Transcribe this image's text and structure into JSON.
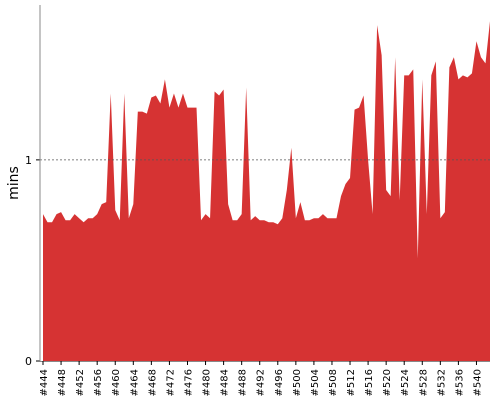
{
  "chart_data": {
    "type": "area",
    "y_label": "mins",
    "categories": [
      "#444",
      null,
      null,
      null,
      "#448",
      null,
      null,
      null,
      "#452",
      null,
      null,
      null,
      "#456",
      null,
      null,
      null,
      "#460",
      null,
      null,
      null,
      "#464",
      null,
      null,
      null,
      "#468",
      null,
      null,
      null,
      "#472",
      null,
      null,
      null,
      "#476",
      null,
      null,
      null,
      "#480",
      null,
      null,
      null,
      "#484",
      null,
      null,
      null,
      "#488",
      null,
      null,
      null,
      "#492",
      null,
      null,
      null,
      "#496",
      null,
      null,
      null,
      "#500",
      null,
      null,
      null,
      "#504",
      null,
      null,
      null,
      "#508",
      null,
      null,
      null,
      "#512",
      null,
      null,
      null,
      "#516",
      null,
      null,
      null,
      "#520",
      null,
      null,
      null,
      "#524",
      null,
      null,
      null,
      "#528",
      null,
      null,
      null,
      "#532",
      null,
      null,
      null,
      "#536",
      null,
      null,
      null,
      "#540",
      null,
      null,
      null
    ],
    "values": [
      0.73,
      0.69,
      0.69,
      0.73,
      0.74,
      0.7,
      0.7,
      0.73,
      0.71,
      0.69,
      0.71,
      0.71,
      0.73,
      0.78,
      0.79,
      1.33,
      0.75,
      0.7,
      1.33,
      0.71,
      0.78,
      1.24,
      1.24,
      1.23,
      1.31,
      1.32,
      1.28,
      1.4,
      1.26,
      1.33,
      1.26,
      1.33,
      1.26,
      1.26,
      1.26,
      0.7,
      0.73,
      0.71,
      1.34,
      1.32,
      1.35,
      0.78,
      0.7,
      0.7,
      0.73,
      1.36,
      0.7,
      0.72,
      0.7,
      0.7,
      0.69,
      0.69,
      0.68,
      0.71,
      0.85,
      1.06,
      0.71,
      0.79,
      0.7,
      0.7,
      0.71,
      0.71,
      0.73,
      0.71,
      0.71,
      0.71,
      0.82,
      0.88,
      0.91,
      1.25,
      1.26,
      1.32,
      1.0,
      0.73,
      1.67,
      1.52,
      0.85,
      0.82,
      1.51,
      0.8,
      1.42,
      1.42,
      1.45,
      0.51,
      1.4,
      0.73,
      1.42,
      1.49,
      0.71,
      0.74,
      1.46,
      1.51,
      1.4,
      1.42,
      1.41,
      1.43,
      1.59,
      1.51,
      1.48,
      1.69
    ],
    "color": "#d63333",
    "ylim": [
      0,
      1.77
    ],
    "yticks": [
      0,
      1
    ],
    "grid": true
  }
}
